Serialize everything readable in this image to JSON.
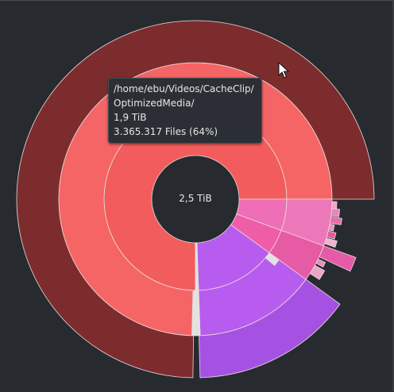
{
  "center": {
    "total_size": "2,5 TiB"
  },
  "tooltip": {
    "path_line1": "/home/ebu/Videos/CacheClip/",
    "path_line2": "OptimizedMedia/",
    "size": "1,9 TiB",
    "files": "3.365.317 Files (64%)"
  },
  "colors": {
    "background": "#272b30",
    "ring1_main": "#f25c5c",
    "ring2_main": "#f56565",
    "ring3_main": "#7d2c2e",
    "purple_inner": "#b85cf0",
    "purple_outer": "#a552e2",
    "pink": "#ea5aae",
    "separator": "#e2e2e2",
    "text": "#e8e8e8"
  },
  "icons": {
    "cursor": "mouse-pointer-icon"
  }
}
